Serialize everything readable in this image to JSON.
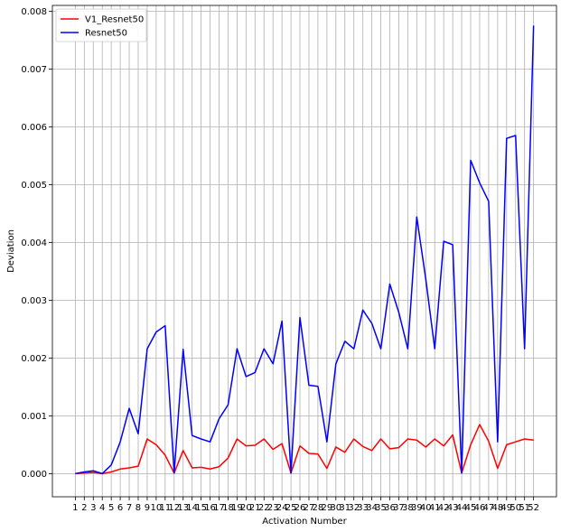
{
  "chart_data": {
    "type": "line",
    "xlabel": "Activation Number",
    "ylabel": "Deviation",
    "x": [
      1,
      2,
      3,
      4,
      5,
      6,
      7,
      8,
      9,
      10,
      11,
      12,
      13,
      14,
      15,
      16,
      17,
      18,
      19,
      20,
      21,
      22,
      23,
      24,
      25,
      26,
      27,
      28,
      29,
      30,
      31,
      32,
      33,
      34,
      35,
      36,
      37,
      38,
      39,
      40,
      41,
      42,
      43,
      44,
      45,
      46,
      47,
      48,
      49,
      50,
      51,
      52
    ],
    "ylim": [
      -0.0004,
      0.0081
    ],
    "yticks": [
      0.0,
      0.001,
      0.002,
      0.003,
      0.004,
      0.005,
      0.006,
      0.007,
      0.008
    ],
    "ytick_labels": [
      "0.000",
      "0.001",
      "0.002",
      "0.003",
      "0.004",
      "0.005",
      "0.006",
      "0.007",
      "0.008"
    ],
    "grid": true,
    "legend_position": "top-left",
    "series": [
      {
        "name": "V1_Resnet50",
        "color": "#ff0000",
        "values": [
          0.0,
          1e-05,
          2e-05,
          0.0,
          3e-05,
          8e-05,
          0.0001,
          0.00013,
          0.0006,
          0.0005,
          0.00032,
          1e-05,
          0.0004,
          0.0001,
          0.00011,
          8e-05,
          0.00012,
          0.00027,
          0.0006,
          0.00048,
          0.00049,
          0.0006,
          0.00042,
          0.00052,
          1e-05,
          0.00048,
          0.00035,
          0.00034,
          9e-05,
          0.00046,
          0.00037,
          0.0006,
          0.00047,
          0.0004,
          0.0006,
          0.00043,
          0.00045,
          0.0006,
          0.00058,
          0.00046,
          0.0006,
          0.00048,
          0.00067,
          1e-05,
          0.0005,
          0.00085,
          0.00056,
          9e-05,
          0.0005,
          0.00055,
          0.0006,
          0.00058
        ]
      },
      {
        "name": "Resnet50",
        "color": "#0000ff",
        "values": [
          0.0,
          3e-05,
          5e-05,
          0.0,
          0.00015,
          0.00055,
          0.00113,
          0.00069,
          0.00216,
          0.00245,
          0.00256,
          1e-05,
          0.00215,
          0.00066,
          0.0006,
          0.00055,
          0.00095,
          0.00119,
          0.00216,
          0.00168,
          0.00175,
          0.00216,
          0.0019,
          0.00264,
          1e-05,
          0.0027,
          0.00153,
          0.00151,
          0.00055,
          0.0019,
          0.00229,
          0.00216,
          0.00283,
          0.0026,
          0.00216,
          0.00328,
          0.00279,
          0.00216,
          0.00444,
          0.00337,
          0.00216,
          0.00402,
          0.00396,
          1e-05,
          0.00542,
          0.00503,
          0.00471,
          0.00055,
          0.0058,
          0.00585,
          0.00216,
          0.00775
        ]
      }
    ]
  }
}
